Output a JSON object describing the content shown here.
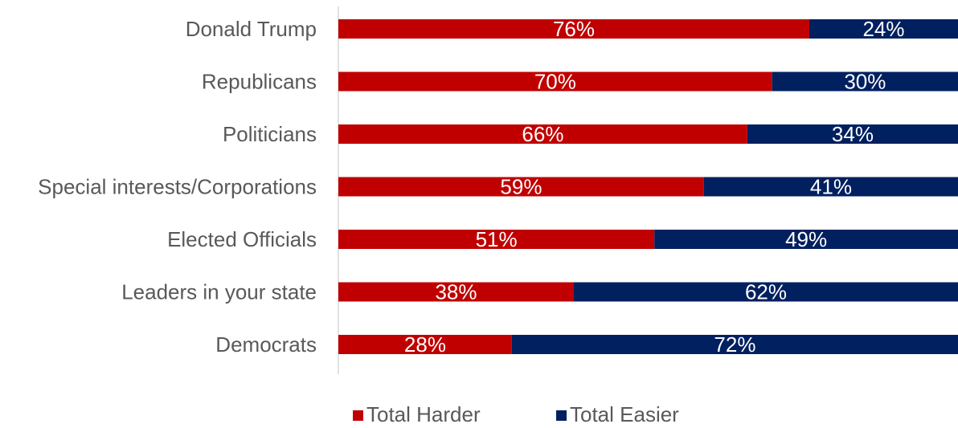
{
  "chart_data": {
    "type": "bar",
    "orientation": "horizontal",
    "stacked": true,
    "percent_stacked": true,
    "categories": [
      "Donald Trump",
      "Republicans ",
      "Politicians",
      "Special interests/Corporations",
      "Elected Officials",
      "Leaders in your state",
      "Democrats"
    ],
    "series": [
      {
        "name": "Total Harder",
        "values": [
          76,
          70,
          66,
          59,
          51,
          38,
          28
        ],
        "labels": [
          "76%",
          "70%",
          "66%",
          "59%",
          "51%",
          "38%",
          "28%"
        ]
      },
      {
        "name": "Total Easier",
        "values": [
          24,
          30,
          34,
          41,
          49,
          62,
          72
        ],
        "labels": [
          "24%",
          "30%",
          "34%",
          "41%",
          "49%",
          "62%",
          "72%"
        ]
      }
    ],
    "xlim": [
      0,
      100
    ],
    "grid": false,
    "legend_position": "bottom",
    "colors": {
      "Total Harder": "#c00000",
      "Total Easier": "#002060",
      "axis": "#d9d9d9"
    }
  }
}
